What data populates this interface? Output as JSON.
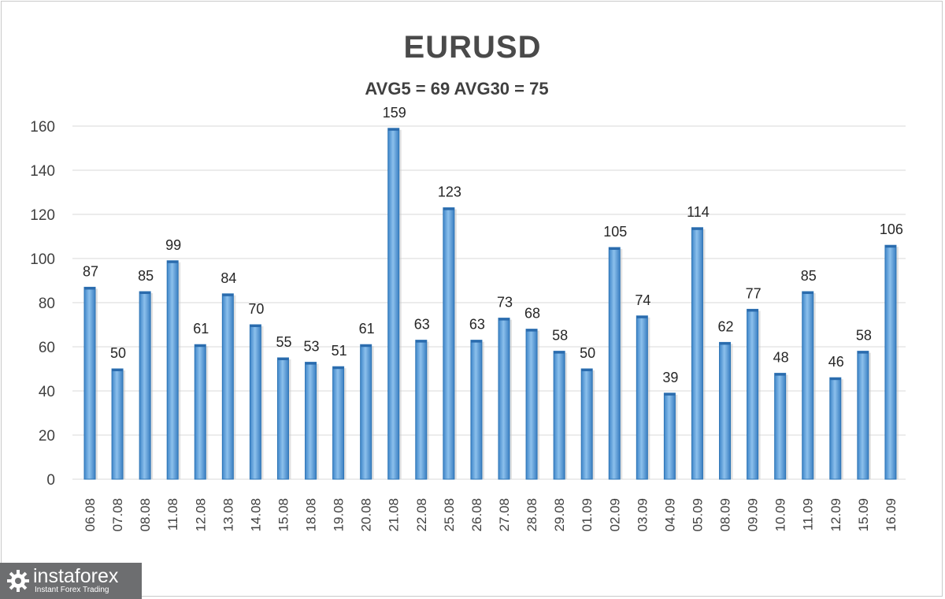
{
  "chart_data": {
    "type": "bar",
    "title": "EURUSD",
    "subtitle": "AVG5 = 69 AVG30 = 75",
    "categories": [
      "06.08",
      "07.08",
      "08.08",
      "11.08",
      "12.08",
      "13.08",
      "14.08",
      "15.08",
      "18.08",
      "19.08",
      "20.08",
      "21.08",
      "22.08",
      "25.08",
      "26.08",
      "27.08",
      "28.08",
      "29.08",
      "01.09",
      "02.09",
      "03.09",
      "04.09",
      "05.09",
      "08.09",
      "09.09",
      "10.09",
      "11.09",
      "12.09",
      "15.09",
      "16.09"
    ],
    "values": [
      87,
      50,
      85,
      99,
      61,
      84,
      70,
      55,
      53,
      51,
      61,
      159,
      63,
      123,
      63,
      73,
      68,
      58,
      50,
      105,
      74,
      39,
      114,
      62,
      77,
      48,
      85,
      46,
      58,
      106
    ],
    "ylim": [
      0,
      160
    ],
    "yticks": [
      0,
      20,
      40,
      60,
      80,
      100,
      120,
      140,
      160
    ],
    "grid": true,
    "data_labels": true,
    "bar_color": "#5b9bd5",
    "bar_dark_color": "#2e75b6"
  },
  "logo": {
    "name": "instaforex",
    "tagline": "Instant Forex Trading",
    "icon": "gear-icon"
  }
}
